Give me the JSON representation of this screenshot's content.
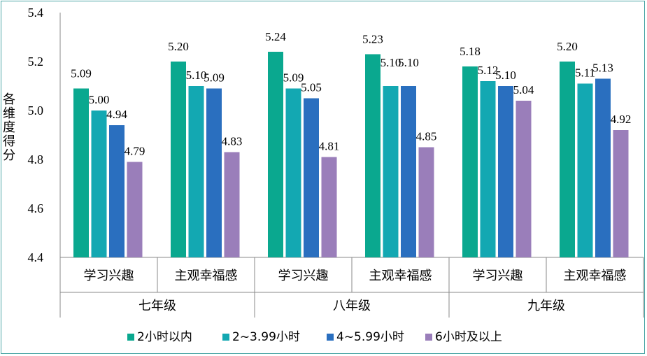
{
  "chart_data": {
    "type": "bar",
    "title": "",
    "ylabel": "各维度得分",
    "xlabel": "",
    "ylim": [
      4.4,
      5.4
    ],
    "yticks": [
      "4.4",
      "4.6",
      "4.8",
      "5.0",
      "5.2",
      "5.4"
    ],
    "grid": false,
    "legend_position": "bottom",
    "groups": [
      {
        "grade": "七年级",
        "categories": [
          "学习兴趣",
          "主观幸福感"
        ]
      },
      {
        "grade": "八年级",
        "categories": [
          "学习兴趣",
          "主观幸福感"
        ]
      },
      {
        "grade": "九年级",
        "categories": [
          "学习兴趣",
          "主观幸福感"
        ]
      }
    ],
    "categories": [
      "七年级-学习兴趣",
      "七年级-主观幸福感",
      "八年级-学习兴趣",
      "八年级-主观幸福感",
      "九年级-学习兴趣",
      "九年级-主观幸福感"
    ],
    "series": [
      {
        "name": "2小时以内",
        "color": "#0aa88f",
        "values": [
          5.09,
          5.2,
          5.24,
          5.23,
          5.18,
          5.2
        ],
        "labels": [
          "5.09",
          "5.20",
          "5.24",
          "5.23",
          "5.18",
          "5.20"
        ]
      },
      {
        "name": "2~3.99小时",
        "color": "#13a8b2",
        "values": [
          5.0,
          5.1,
          5.09,
          5.1,
          5.12,
          5.11
        ],
        "labels": [
          "5.00",
          "5.10",
          "5.09",
          "5.10",
          "5.12",
          "5.11"
        ]
      },
      {
        "name": "4~5.99小时",
        "color": "#2a6fbf",
        "values": [
          4.94,
          5.09,
          5.05,
          5.1,
          5.1,
          5.13
        ],
        "labels": [
          "4.94",
          "5.09",
          "5.05",
          "5.10",
          "5.10",
          "5.13"
        ]
      },
      {
        "name": "6小时及以上",
        "color": "#9a7eba",
        "values": [
          4.79,
          4.83,
          4.81,
          4.85,
          5.04,
          4.92
        ],
        "labels": [
          "4.79",
          "4.83",
          "4.81",
          "4.85",
          "5.04",
          "4.92"
        ]
      }
    ]
  }
}
